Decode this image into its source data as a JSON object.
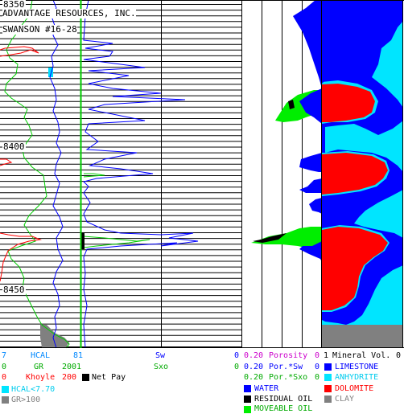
{
  "header": {
    "company": "ADVANTAGE RESOURCES, INC.",
    "well": "SWANSON #16-28"
  },
  "depths": {
    "d8350": "8350",
    "d8400": "8400",
    "d8450": "8450"
  },
  "colors": {
    "hcal": "#00aaff",
    "gr": "#00cc00",
    "khoyle": "#ff0000",
    "sw": "#0000ff",
    "porosity": "#cc00cc",
    "limestone": "#0000ff",
    "anhydrite": "#00e5ff",
    "dolomite": "#ff0000",
    "clay": "#808080",
    "water": "#0000ff",
    "residual": "#000000",
    "moveable": "#00ee00",
    "netpay": "#000000"
  },
  "legend": {
    "track1": {
      "hcal_min": "7",
      "hcal_name": "HCAL",
      "hcal_max": "81",
      "gr_min": "0",
      "gr_name": "GR",
      "gr_max": "2001",
      "kh_min": "0",
      "kh_name": "Khoyle",
      "kh_max": "200",
      "netpay": "Net Pay",
      "hcal_fill": "HCAL<7.70",
      "gr_fill": "GR>100"
    },
    "track2": {
      "sw_name": "Sw",
      "sw_max": "0",
      "sxo_name": "Sxo",
      "sxo_max": "0"
    },
    "track3": {
      "p_min": "0.20",
      "p_name": "Porosity",
      "p_max": "0",
      "psw_min": "0.20",
      "psw_name": "Por.*Sw",
      "psw_max": "0",
      "psxo_min": "0.20",
      "psxo_name": "Por.*Sxo",
      "psxo_max": "0",
      "water": "WATER",
      "residual": "RESIDUAL OIL",
      "moveable": "MOVEABLE OIL"
    },
    "track4": {
      "mv_min": "1",
      "mv_name": "Mineral Vol.",
      "mv_max": "0",
      "limestone": "LIMESTONE",
      "anhydrite": "ANHYDRITE",
      "dolomite": "DOLOMITE",
      "clay": "CLAY"
    }
  }
}
